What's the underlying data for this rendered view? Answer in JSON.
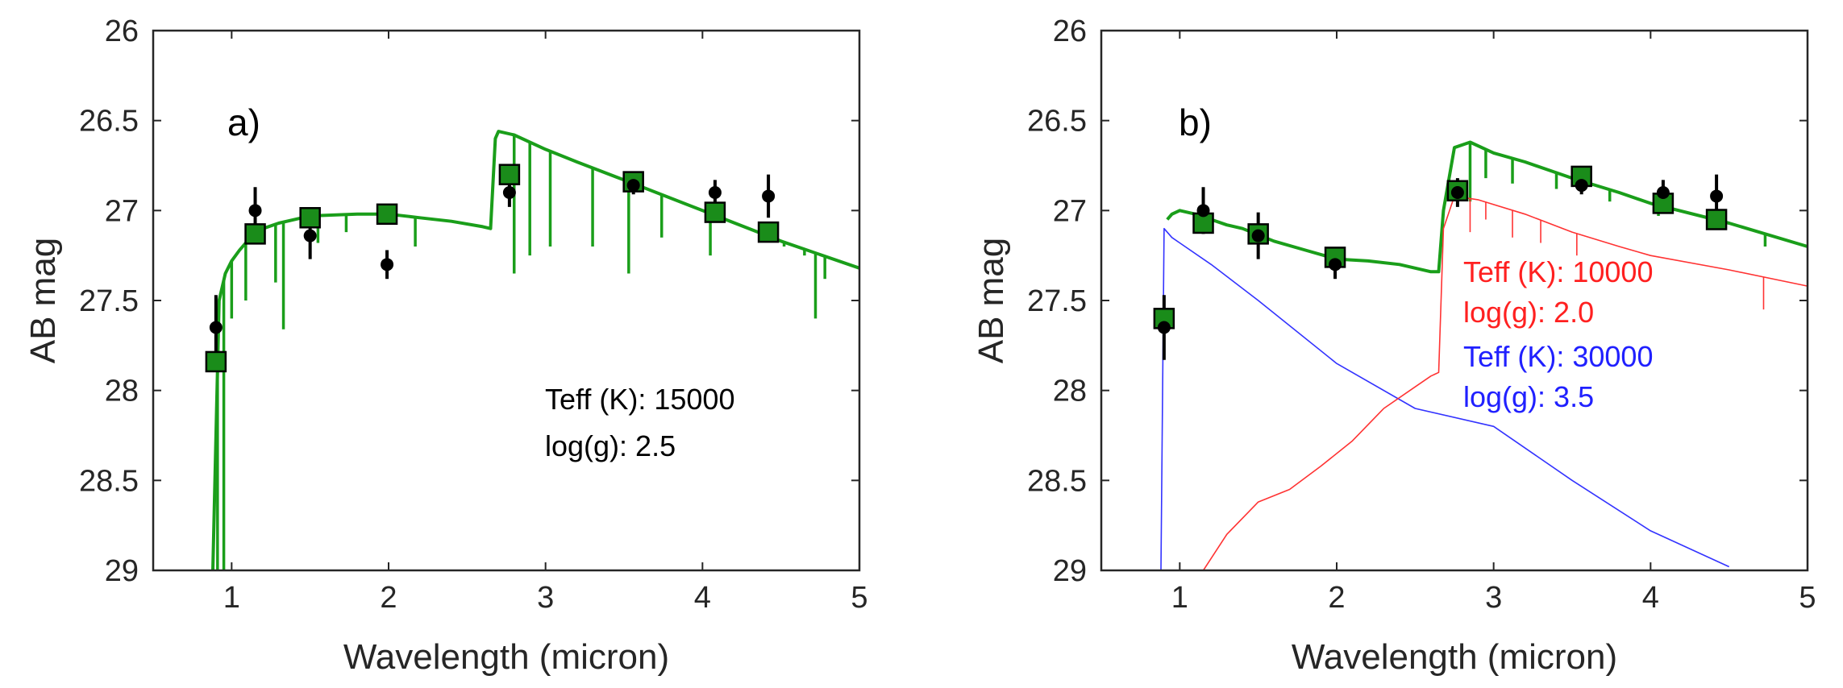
{
  "chart_data": [
    {
      "type": "scatter",
      "panel_label": "a)",
      "xlabel": "Wavelength (micron)",
      "ylabel": "AB mag",
      "xlim": [
        0.5,
        5
      ],
      "ylim": [
        26,
        29
      ],
      "y_reversed": true,
      "xticks": [
        "1",
        "2",
        "3",
        "4",
        "5"
      ],
      "yticks": [
        "26",
        "26.5",
        "27",
        "27.5",
        "28",
        "28.5",
        "29"
      ],
      "annotations": [
        {
          "text": "Teff (K): 15000",
          "color": "#000000"
        },
        {
          "text": "log(g): 2.5",
          "color": "#000000"
        }
      ],
      "series": [
        {
          "kind": "observed",
          "color": "#000000",
          "points": [
            {
              "x": 0.9,
              "y": 27.65,
              "err": 0.18
            },
            {
              "x": 1.15,
              "y": 27.0,
              "err": 0.13
            },
            {
              "x": 1.5,
              "y": 27.14,
              "err": 0.13
            },
            {
              "x": 1.99,
              "y": 27.3,
              "err": 0.08
            },
            {
              "x": 2.77,
              "y": 26.9,
              "err": 0.08
            },
            {
              "x": 3.56,
              "y": 26.86,
              "err": 0.05
            },
            {
              "x": 4.08,
              "y": 26.9,
              "err": 0.07
            },
            {
              "x": 4.42,
              "y": 26.92,
              "err": 0.12
            }
          ]
        },
        {
          "kind": "model photometry",
          "color": "#1a8c1a",
          "points": [
            {
              "x": 0.9,
              "y": 27.84
            },
            {
              "x": 1.15,
              "y": 27.13
            },
            {
              "x": 1.5,
              "y": 27.04
            },
            {
              "x": 1.99,
              "y": 27.02
            },
            {
              "x": 2.77,
              "y": 26.8
            },
            {
              "x": 3.56,
              "y": 26.84
            },
            {
              "x": 4.08,
              "y": 27.01
            },
            {
              "x": 4.42,
              "y": 27.12
            }
          ]
        },
        {
          "kind": "model spectrum",
          "color": "#1a9e1a",
          "x": [
            0.88,
            0.92,
            0.96,
            1.0,
            1.05,
            1.1,
            1.2,
            1.3,
            1.5,
            1.8,
            2.0,
            2.2,
            2.4,
            2.6,
            2.65,
            2.68,
            2.7,
            2.8,
            3.0,
            3.2,
            3.5,
            4.0,
            4.5,
            5.0
          ],
          "y": [
            29.0,
            27.5,
            27.35,
            27.28,
            27.22,
            27.17,
            27.1,
            27.07,
            27.03,
            27.02,
            27.02,
            27.04,
            27.06,
            27.09,
            27.1,
            26.6,
            26.56,
            26.58,
            26.66,
            26.73,
            26.83,
            27.0,
            27.17,
            27.32
          ],
          "absorption_lines": [
            {
              "x": 0.91,
              "depth": 29.0
            },
            {
              "x": 0.95,
              "depth": 29.0
            },
            {
              "x": 1.0,
              "depth": 27.6
            },
            {
              "x": 1.09,
              "depth": 27.5
            },
            {
              "x": 1.28,
              "depth": 27.4
            },
            {
              "x": 1.33,
              "depth": 27.66
            },
            {
              "x": 1.5,
              "depth": 27.25
            },
            {
              "x": 1.55,
              "depth": 27.18
            },
            {
              "x": 1.73,
              "depth": 27.12
            },
            {
              "x": 2.17,
              "depth": 27.2
            },
            {
              "x": 2.8,
              "depth": 27.35
            },
            {
              "x": 2.9,
              "depth": 27.25
            },
            {
              "x": 3.03,
              "depth": 27.2
            },
            {
              "x": 3.3,
              "depth": 27.2
            },
            {
              "x": 3.53,
              "depth": 27.35
            },
            {
              "x": 3.74,
              "depth": 27.15
            },
            {
              "x": 4.05,
              "depth": 27.25
            },
            {
              "x": 4.52,
              "depth": 27.2
            },
            {
              "x": 4.65,
              "depth": 27.25
            },
            {
              "x": 4.72,
              "depth": 27.6
            },
            {
              "x": 4.78,
              "depth": 27.38
            }
          ]
        }
      ]
    },
    {
      "type": "scatter",
      "panel_label": "b)",
      "xlabel": "Wavelength (micron)",
      "ylabel": "AB mag",
      "xlim": [
        0.5,
        5
      ],
      "ylim": [
        26,
        29
      ],
      "y_reversed": true,
      "xticks": [
        "1",
        "2",
        "3",
        "4",
        "5"
      ],
      "yticks": [
        "26",
        "26.5",
        "27",
        "27.5",
        "28",
        "28.5",
        "29"
      ],
      "annotations": [
        {
          "text": "Teff (K): 10000",
          "color": "#ff2020"
        },
        {
          "text": "log(g): 2.0",
          "color": "#ff2020"
        },
        {
          "text": "Teff (K): 30000",
          "color": "#2020ff"
        },
        {
          "text": "log(g): 3.5",
          "color": "#2020ff"
        }
      ],
      "series": [
        {
          "kind": "observed",
          "color": "#000000",
          "points": [
            {
              "x": 0.9,
              "y": 27.65,
              "err": 0.18
            },
            {
              "x": 1.15,
              "y": 27.0,
              "err": 0.13
            },
            {
              "x": 1.5,
              "y": 27.14,
              "err": 0.13
            },
            {
              "x": 1.99,
              "y": 27.3,
              "err": 0.08
            },
            {
              "x": 2.77,
              "y": 26.9,
              "err": 0.08
            },
            {
              "x": 3.56,
              "y": 26.86,
              "err": 0.05
            },
            {
              "x": 4.08,
              "y": 26.9,
              "err": 0.07
            },
            {
              "x": 4.42,
              "y": 26.92,
              "err": 0.12
            }
          ]
        },
        {
          "kind": "model photometry",
          "color": "#1a8c1a",
          "points": [
            {
              "x": 0.9,
              "y": 27.6
            },
            {
              "x": 1.15,
              "y": 27.07
            },
            {
              "x": 1.5,
              "y": 27.13
            },
            {
              "x": 1.99,
              "y": 27.26
            },
            {
              "x": 2.77,
              "y": 26.89
            },
            {
              "x": 3.56,
              "y": 26.81
            },
            {
              "x": 4.08,
              "y": 26.96
            },
            {
              "x": 4.42,
              "y": 27.05
            }
          ]
        },
        {
          "kind": "combined spectrum",
          "color": "#1a9e1a",
          "x": [
            0.92,
            0.95,
            1.0,
            1.1,
            1.2,
            1.3,
            1.4,
            1.6,
            1.8,
            2.0,
            2.2,
            2.4,
            2.6,
            2.65,
            2.68,
            2.75,
            2.85,
            3.0,
            3.2,
            3.5,
            3.8,
            4.0,
            4.5,
            5.0
          ],
          "y": [
            27.05,
            27.02,
            27.0,
            27.02,
            27.05,
            27.08,
            27.1,
            27.17,
            27.22,
            27.27,
            27.28,
            27.3,
            27.34,
            27.34,
            27.0,
            26.65,
            26.62,
            26.68,
            26.73,
            26.82,
            26.9,
            26.96,
            27.07,
            27.2
          ],
          "absorption_lines": [
            {
              "x": 2.85,
              "depth": 26.95
            },
            {
              "x": 2.95,
              "depth": 26.82
            },
            {
              "x": 3.12,
              "depth": 26.85
            },
            {
              "x": 3.4,
              "depth": 26.88
            },
            {
              "x": 3.74,
              "depth": 26.95
            },
            {
              "x": 4.05,
              "depth": 27.03
            },
            {
              "x": 4.73,
              "depth": 27.2
            }
          ]
        },
        {
          "kind": "hot component spectrum",
          "color": "#3333ff",
          "x": [
            0.88,
            0.9,
            0.95,
            1.0,
            1.2,
            1.5,
            2.0,
            2.5,
            3.0,
            3.5,
            4.0,
            4.5
          ],
          "y": [
            29.0,
            27.1,
            27.15,
            27.18,
            27.3,
            27.5,
            27.85,
            28.1,
            28.2,
            28.5,
            28.78,
            28.98
          ]
        },
        {
          "kind": "cool component spectrum",
          "color": "#ff3333",
          "x": [
            1.15,
            1.3,
            1.5,
            1.7,
            1.9,
            2.1,
            2.3,
            2.5,
            2.6,
            2.65,
            2.68,
            2.75,
            2.9,
            3.2,
            3.5,
            3.8,
            4.0,
            4.5,
            5.0
          ],
          "y": [
            29.0,
            28.8,
            28.62,
            28.55,
            28.42,
            28.28,
            28.1,
            27.98,
            27.92,
            27.9,
            27.1,
            26.92,
            26.94,
            27.02,
            27.12,
            27.2,
            27.25,
            27.33,
            27.42
          ],
          "absorption_lines": [
            {
              "x": 2.85,
              "depth": 27.12
            },
            {
              "x": 2.95,
              "depth": 27.05
            },
            {
              "x": 3.12,
              "depth": 27.15
            },
            {
              "x": 3.3,
              "depth": 27.18
            },
            {
              "x": 3.53,
              "depth": 27.25
            },
            {
              "x": 4.72,
              "depth": 27.55
            }
          ]
        }
      ]
    }
  ]
}
